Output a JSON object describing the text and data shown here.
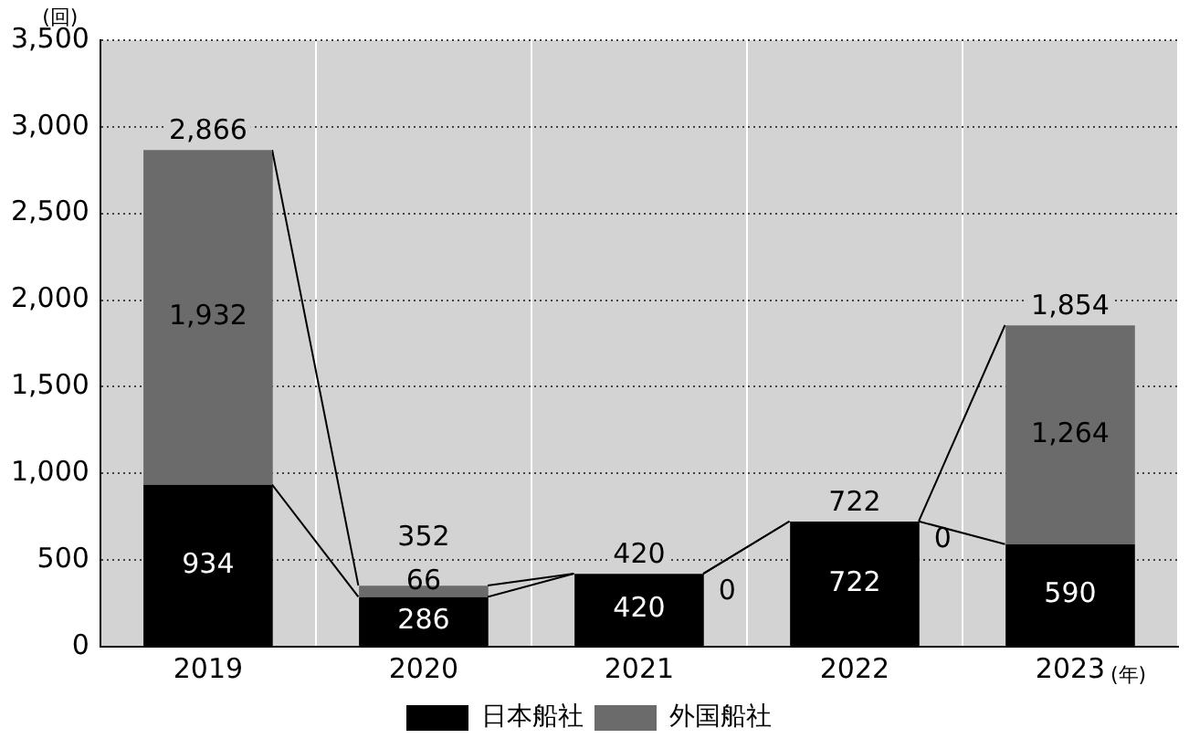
{
  "chart_data": {
    "type": "bar",
    "stacked": true,
    "ylabel": "(回)",
    "xlabel": "(年)",
    "categories": [
      "2019",
      "2020",
      "2021",
      "2022",
      "2023"
    ],
    "series": [
      {
        "name": "日本船社",
        "color": "#000000",
        "values": [
          934,
          286,
          420,
          722,
          590
        ],
        "value_labels": [
          "934",
          "286",
          "420",
          "722",
          "590"
        ]
      },
      {
        "name": "外国船社",
        "color": "#6b6b6b",
        "values": [
          1932,
          66,
          0,
          0,
          1264
        ],
        "value_labels": [
          "1,932",
          "66",
          null,
          null,
          "1,264"
        ]
      }
    ],
    "annotations": [
      {
        "text": "0",
        "x": "2021",
        "y": 420
      },
      {
        "text": "0",
        "x": "2022",
        "y": 722
      }
    ],
    "totals": [
      "2,866",
      "352",
      "420",
      "722",
      "1,854"
    ],
    "ylim": [
      0,
      3500
    ],
    "yticks": [
      {
        "value": 0,
        "label": "0"
      },
      {
        "value": 500,
        "label": "500"
      },
      {
        "value": 1000,
        "label": "1,000"
      },
      {
        "value": 1500,
        "label": "1,500"
      },
      {
        "value": 2000,
        "label": "2,000"
      },
      {
        "value": 2500,
        "label": "2,500"
      },
      {
        "value": 3000,
        "label": "3,000"
      },
      {
        "value": 3500,
        "label": "3,500"
      }
    ],
    "grid": true,
    "legend": "bottom"
  }
}
